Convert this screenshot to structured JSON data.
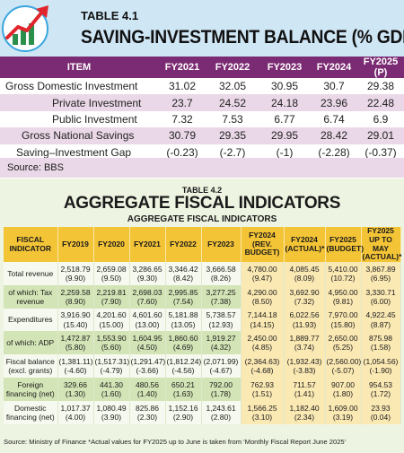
{
  "table1": {
    "label": "TABLE 4.1",
    "title": "SAVING-INVESTMENT BALANCE (% GDP)",
    "columns": [
      "ITEM",
      "FY2021",
      "FY2022",
      "FY2023",
      "FY2024",
      "FY2025 (P)"
    ],
    "rows": [
      {
        "item": "Gross Domestic Investment",
        "values": [
          "31.02",
          "32.05",
          "30.95",
          "30.7",
          "29.38"
        ]
      },
      {
        "item": "Private Investment",
        "values": [
          "23.7",
          "24.52",
          "24.18",
          "23.96",
          "22.48"
        ]
      },
      {
        "item": "Public Investment",
        "values": [
          "7.32",
          "7.53",
          "6.77",
          "6.74",
          "6.9"
        ]
      },
      {
        "item": "Gross National Savings",
        "values": [
          "30.79",
          "29.35",
          "29.95",
          "28.42",
          "29.01"
        ]
      },
      {
        "item": "Saving–Investment Gap",
        "values": [
          "(-0.23)",
          "(-2.7)",
          "(-1)",
          "(-2.28)",
          "(-0.37)"
        ]
      }
    ],
    "source": "Source: BBS"
  },
  "table2": {
    "label": "TABLE 4.2",
    "title": "AGGREGATE FISCAL INDICATORS",
    "subtitle": "AGGREGATE FISCAL INDICATORS",
    "columns": [
      "FISCAL INDICATOR",
      "FY2019",
      "FY2020",
      "FY2021",
      "FY2022",
      "FY2023",
      "FY2024 (REV. BUDGET)",
      "FY2024 (ACTUAL)*",
      "FY2025 (BUDGET)",
      "FY2025 UP TO MAY (ACTUAL)*"
    ],
    "rows": [
      {
        "label": "Total revenue",
        "values": [
          [
            "2,518.79",
            "(9.90)"
          ],
          [
            "2,659.08",
            "(9.50)"
          ],
          [
            "3,286.65",
            "(9.30)"
          ],
          [
            "3,346.42",
            "(8.42)"
          ],
          [
            "3,666.58",
            "(8.26)"
          ],
          [
            "4,780.00",
            "(9.47)"
          ],
          [
            "4,085.45",
            "(8.09)"
          ],
          [
            "5,410.00",
            "(10.72)"
          ],
          [
            "3,867.89",
            "(6.95)"
          ]
        ]
      },
      {
        "label": "of which: Tax revenue",
        "values": [
          [
            "2,259.58",
            "(8.90)"
          ],
          [
            "2,219.81",
            "(7.90)"
          ],
          [
            "2,698.03",
            "(7.60)"
          ],
          [
            "2,995.85",
            "(7.54)"
          ],
          [
            "3,277.25",
            "(7.38)"
          ],
          [
            "4,290.00",
            "(8.50)"
          ],
          [
            "3,692.90",
            "(7.32)"
          ],
          [
            "4,950.00",
            "(9.81)"
          ],
          [
            "3,330.71",
            "(6.00)"
          ]
        ]
      },
      {
        "label": "Expenditures",
        "values": [
          [
            "3,916.90",
            "(15.40)"
          ],
          [
            "4,201.60",
            "(15.00)"
          ],
          [
            "4,601.60",
            "(13.00)"
          ],
          [
            "5,181.88",
            "(13.05)"
          ],
          [
            "5,738.57",
            "(12.93)"
          ],
          [
            "7,144.18",
            "(14.15)"
          ],
          [
            "6,022.56",
            "(11.93)"
          ],
          [
            "7,970.00",
            "(15.80)"
          ],
          [
            "4,922.45",
            "(8.87)"
          ]
        ]
      },
      {
        "label": "of which: ADP",
        "values": [
          [
            "1,472.87",
            "(5.80)"
          ],
          [
            "1,553.90",
            "(5.60)"
          ],
          [
            "1,604.95",
            "(4.50)"
          ],
          [
            "1,860.60",
            "(4.69)"
          ],
          [
            "1,919.27",
            "(4.32)"
          ],
          [
            "2,450.00",
            "(4.85)"
          ],
          [
            "1,889.77",
            "(3.74)"
          ],
          [
            "2,650.00",
            "(5.25)"
          ],
          [
            "875.98",
            "(1.58)"
          ]
        ]
      },
      {
        "label": "Fiscal balance (excl. grants)",
        "values": [
          [
            "(1,381.11)",
            "(-4.60)"
          ],
          [
            "(1,517.31)",
            "(-4.79)"
          ],
          [
            "(1,291.47)",
            "(-3.66)"
          ],
          [
            "(1,812.24)",
            "(-4.56)"
          ],
          [
            "(2,071.99)",
            "(-4.67)"
          ],
          [
            "(2,364.63)",
            "(-4.68)"
          ],
          [
            "(1,932.43)",
            "(-3.83)"
          ],
          [
            "(2,560.00)",
            "(-5.07)"
          ],
          [
            "(1,054.56)",
            "(-1.90)"
          ]
        ]
      },
      {
        "label": "Foreign financing (net)",
        "values": [
          [
            "329.66",
            "(1.30)"
          ],
          [
            "441.30",
            "(1.60)"
          ],
          [
            "480.56",
            "(1.40)"
          ],
          [
            "650.21",
            "(1.63)"
          ],
          [
            "792.00",
            "(1.78)"
          ],
          [
            "762.93",
            "(1.51)"
          ],
          [
            "711.57",
            "(1.41)"
          ],
          [
            "907.00",
            "(1.80)"
          ],
          [
            "954.53",
            "(1.72)"
          ]
        ]
      },
      {
        "label": "Domestic financing (net)",
        "values": [
          [
            "1,017.37",
            "(4.00)"
          ],
          [
            "1,080.49",
            "(3.90)"
          ],
          [
            "825.86",
            "(2.30)"
          ],
          [
            "1,152.16",
            "(2.90)"
          ],
          [
            "1,243.61",
            "(2.80)"
          ],
          [
            "1,566.25",
            "(3.10)"
          ],
          [
            "1,182.40",
            "(2.34)"
          ],
          [
            "1,609.00",
            "(3.19)"
          ],
          [
            "23.93",
            "(0.04)"
          ]
        ]
      }
    ],
    "source": "Source: Ministry of Finance *Actual values for FY2025 up to June is taken from 'Monthly Fiscal Report June 2025'"
  },
  "colors": {
    "table1_header": "#7b2b73",
    "table1_band": "#ead8e8",
    "title_bg": "#cfe6f5",
    "table2_header": "#f4c437",
    "table2_band": "#d3e4b6",
    "logo_arrow": "#e0262c"
  },
  "icons": [
    "growth-chart-arrow-icon"
  ]
}
